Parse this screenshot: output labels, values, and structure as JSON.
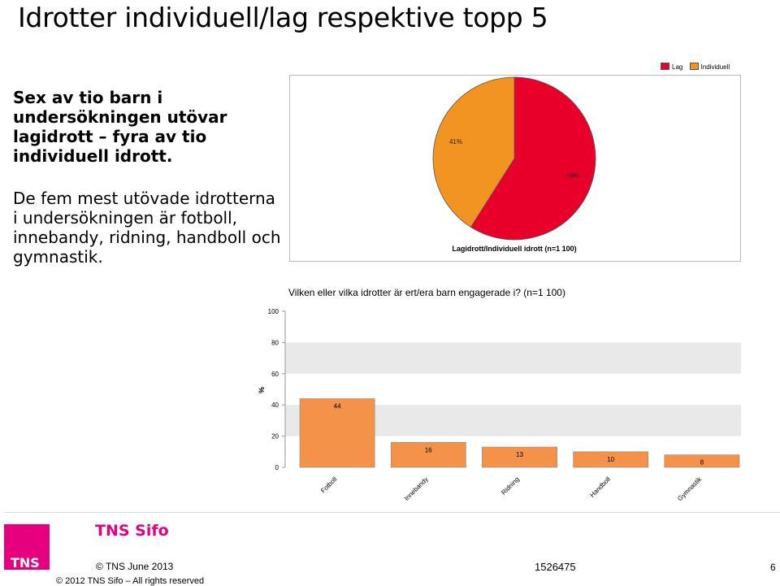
{
  "slide": {
    "title": "Idrotter individuell/lag respektive topp 5",
    "lead": "Sex av tio barn i undersökningen utövar lagidrott – fyra av tio individuell idrott.",
    "body": "De fem mest utövade idrotterna i undersökningen är fotboll, innebandy, ridning, handboll och gymnastik."
  },
  "footer": {
    "brand": "TNS Sifo",
    "logo_text": "TNS",
    "copyright_short": "© TNS   June 2013",
    "copyright_long": "© 2012 TNS Sifo – All rights reserved",
    "project_number": "1526475",
    "page_number": "6"
  },
  "colors": {
    "lag": "#e8002a",
    "individuell": "#f29422",
    "bar": "#f5924a",
    "accent": "#e6007e"
  },
  "chart_data": [
    {
      "type": "pie",
      "title": "Lagidrott/Individuell idrott (n=1 100)",
      "legend": [
        "Lag",
        "Individuell"
      ],
      "legend_position": "top-right",
      "slices": [
        {
          "name": "Lag",
          "value": 59,
          "label": "59%"
        },
        {
          "name": "Individuell",
          "value": 41,
          "label": "41%"
        }
      ]
    },
    {
      "type": "bar",
      "title": "Vilken eller vilka idrotter är ert/era barn engagerade i? (n=1 100)",
      "ylabel": "%",
      "ylim": [
        0,
        100
      ],
      "yticks": [
        0,
        20,
        40,
        60,
        80,
        100
      ],
      "categories": [
        "Fotboll",
        "Innebandy",
        "Ridning",
        "Handboll",
        "Gymnastik"
      ],
      "values": [
        44,
        16,
        13,
        10,
        8
      ]
    }
  ]
}
